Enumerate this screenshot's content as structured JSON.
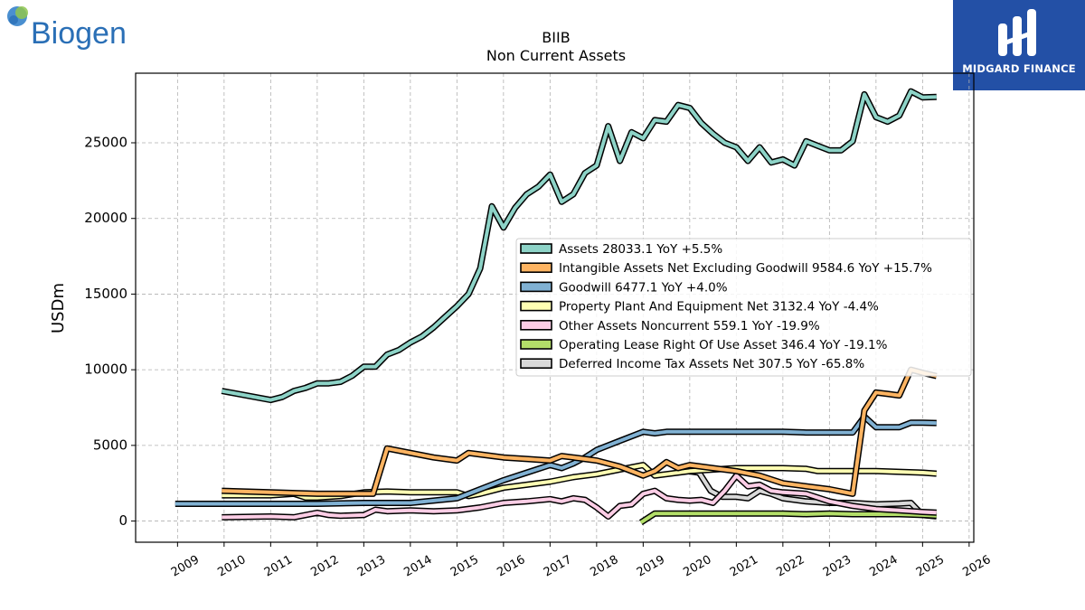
{
  "brand_left": {
    "name": "Biogen",
    "color": "#2a6fb6"
  },
  "brand_right": {
    "name": "MIDGARD FINANCE",
    "background": "#2350a6"
  },
  "chart_data": {
    "type": "line",
    "title": "BIIB",
    "subtitle": "Non Current  Assets",
    "ylabel": "USDm",
    "xlim": [
      2008.1,
      2026.1
    ],
    "ylim": [
      -1400,
      29600
    ],
    "x_ticks": [
      2009,
      2010,
      2011,
      2012,
      2013,
      2014,
      2015,
      2016,
      2017,
      2018,
      2019,
      2020,
      2021,
      2022,
      2023,
      2024,
      2025,
      2026
    ],
    "x_tick_labels": [
      "2009",
      "2010",
      "2011",
      "2012",
      "2013",
      "2014",
      "2015",
      "2016",
      "2017",
      "2018",
      "2019",
      "2020",
      "2021",
      "2022",
      "2023",
      "2024",
      "2025",
      "2026"
    ],
    "y_ticks": [
      0,
      5000,
      10000,
      15000,
      20000,
      25000
    ],
    "y_tick_labels": [
      "0",
      "5000",
      "10000",
      "15000",
      "20000",
      "25000"
    ],
    "grid": true,
    "legend_position": "center-right",
    "series": [
      {
        "name": "Assets",
        "legend": "Assets  28033.1 YoY +5.5%",
        "color": "#8dd3c7",
        "x": [
          2009.95,
          2011.0,
          2011.25,
          2011.5,
          2011.75,
          2012.0,
          2012.25,
          2012.5,
          2012.75,
          2013.0,
          2013.25,
          2013.5,
          2013.75,
          2014.0,
          2014.25,
          2014.5,
          2014.75,
          2015.0,
          2015.25,
          2015.5,
          2015.75,
          2016.0,
          2016.25,
          2016.5,
          2016.75,
          2017.0,
          2017.25,
          2017.5,
          2017.75,
          2018.0,
          2018.25,
          2018.5,
          2018.75,
          2019.0,
          2019.25,
          2019.5,
          2019.75,
          2020.0,
          2020.25,
          2020.5,
          2020.75,
          2021.0,
          2021.25,
          2021.5,
          2021.75,
          2022.0,
          2022.25,
          2022.5,
          2022.75,
          2023.0,
          2023.25,
          2023.5,
          2023.75,
          2024.0,
          2024.25,
          2024.5,
          2024.75,
          2025.0,
          2025.3
        ],
        "y": [
          8600,
          8000,
          8200,
          8600,
          8800,
          9100,
          9100,
          9200,
          9600,
          10200,
          10200,
          11000,
          11300,
          11800,
          12200,
          12800,
          13500,
          14200,
          15000,
          16700,
          20800,
          19400,
          20700,
          21600,
          22100,
          22900,
          21100,
          21600,
          23000,
          23500,
          26100,
          23800,
          25700,
          25300,
          26500,
          26400,
          27500,
          27300,
          26300,
          25600,
          25000,
          24700,
          23800,
          24700,
          23700,
          23900,
          23500,
          25100,
          24800,
          24500,
          24500,
          25100,
          28200,
          26700,
          26400,
          26800,
          28400,
          28000,
          28033.1
        ]
      },
      {
        "name": "Intangible Assets Net Excluding Goodwill",
        "legend": "Intangible Assets Net Excluding Goodwill  9584.6 YoY +15.7%",
        "color": "#fdb462",
        "x": [
          2009.95,
          2011.0,
          2012.0,
          2012.75,
          2013.2,
          2013.5,
          2014.0,
          2014.5,
          2015.0,
          2015.25,
          2015.5,
          2016.0,
          2016.5,
          2017.0,
          2017.25,
          2017.5,
          2018.0,
          2018.5,
          2019.0,
          2019.25,
          2019.5,
          2019.75,
          2020.0,
          2020.5,
          2021.0,
          2021.5,
          2022.0,
          2022.5,
          2023.0,
          2023.5,
          2023.75,
          2024.0,
          2024.25,
          2024.5,
          2024.75,
          2025.0,
          2025.3
        ],
        "y": [
          2000,
          1900,
          1800,
          1800,
          1800,
          4800,
          4500,
          4200,
          4000,
          4500,
          4400,
          4200,
          4100,
          4000,
          4300,
          4200,
          4000,
          3600,
          3000,
          3300,
          3900,
          3500,
          3700,
          3500,
          3300,
          3000,
          2500,
          2300,
          2100,
          1800,
          7300,
          8500,
          8400,
          8300,
          10000,
          9800,
          9584.6
        ]
      },
      {
        "name": "Goodwill",
        "legend": "Goodwill  6477.1 YoY +4.0%",
        "color": "#80b1d3",
        "x": [
          2008.95,
          2009.95,
          2011.0,
          2012.0,
          2013.0,
          2014.0,
          2015.0,
          2015.5,
          2016.0,
          2016.5,
          2017.0,
          2017.25,
          2017.5,
          2017.75,
          2018.0,
          2018.5,
          2019.0,
          2019.25,
          2019.5,
          2020.0,
          2020.5,
          2021.0,
          2021.5,
          2022.0,
          2022.5,
          2023.0,
          2023.5,
          2023.75,
          2024.0,
          2024.25,
          2024.5,
          2024.75,
          2025.0,
          2025.3
        ],
        "y": [
          1140,
          1140,
          1140,
          1140,
          1200,
          1200,
          1500,
          2100,
          2700,
          3200,
          3700,
          3500,
          3800,
          4200,
          4700,
          5300,
          5900,
          5800,
          5900,
          5900,
          5900,
          5900,
          5900,
          5900,
          5850,
          5850,
          5850,
          6900,
          6200,
          6200,
          6200,
          6500,
          6500,
          6477.1
        ]
      },
      {
        "name": "Property Plant And Equipment Net",
        "legend": "Property Plant And Equipment Net  3132.4 YoY -4.4%",
        "color": "#ffffb3",
        "x": [
          2009.95,
          2011.0,
          2011.5,
          2011.75,
          2012.0,
          2012.5,
          2013.0,
          2013.5,
          2014.0,
          2014.5,
          2015.0,
          2015.25,
          2015.5,
          2016.0,
          2016.5,
          2017.0,
          2017.5,
          2018.0,
          2018.5,
          2019.0,
          2019.25,
          2019.5,
          2020.0,
          2020.5,
          2021.0,
          2021.5,
          2022.0,
          2022.5,
          2022.75,
          2023.0,
          2023.5,
          2024.0,
          2024.5,
          2025.0,
          2025.3
        ],
        "y": [
          1700,
          1700,
          1800,
          1550,
          1550,
          1650,
          1900,
          1950,
          1900,
          1900,
          1900,
          1650,
          1800,
          2200,
          2400,
          2600,
          2900,
          3100,
          3400,
          3700,
          3000,
          3100,
          3300,
          3400,
          3500,
          3500,
          3500,
          3450,
          3300,
          3300,
          3300,
          3300,
          3250,
          3200,
          3132.4
        ]
      },
      {
        "name": "Other Assets Noncurrent",
        "legend": "Other Assets Noncurrent  559.1 YoY -19.9%",
        "color": "#fccde5",
        "x": [
          2009.95,
          2011.0,
          2011.5,
          2012.0,
          2012.25,
          2012.5,
          2013.0,
          2013.25,
          2013.5,
          2014.0,
          2014.5,
          2015.0,
          2015.5,
          2016.0,
          2016.5,
          2017.0,
          2017.25,
          2017.5,
          2017.75,
          2018.0,
          2018.25,
          2018.5,
          2018.75,
          2019.0,
          2019.25,
          2019.5,
          2019.75,
          2020.0,
          2020.25,
          2020.5,
          2020.75,
          2021.0,
          2021.25,
          2021.5,
          2021.75,
          2022.0,
          2022.5,
          2023.0,
          2023.5,
          2024.0,
          2024.5,
          2025.0,
          2025.3
        ],
        "y": [
          250,
          300,
          250,
          550,
          400,
          350,
          400,
          750,
          650,
          700,
          650,
          700,
          900,
          1200,
          1300,
          1450,
          1300,
          1500,
          1400,
          900,
          300,
          1000,
          1100,
          1800,
          2000,
          1500,
          1400,
          1350,
          1400,
          1200,
          2000,
          3000,
          2300,
          2400,
          2000,
          1900,
          1800,
          1300,
          1000,
          800,
          700,
          600,
          559.1
        ]
      },
      {
        "name": "Operating Lease Right Of Use Asset",
        "legend": "Operating Lease Right Of Use Asset  346.4 YoY -19.1%",
        "color": "#b3de69",
        "x": [
          2018.95,
          2019.25,
          2020.0,
          2020.5,
          2021.0,
          2021.5,
          2022.0,
          2022.5,
          2023.0,
          2023.5,
          2024.0,
          2024.5,
          2025.0,
          2025.3
        ],
        "y": [
          -100,
          500,
          500,
          500,
          500,
          500,
          500,
          450,
          500,
          450,
          450,
          450,
          400,
          346.4
        ]
      },
      {
        "name": "Deferred Income Tax Assets Net",
        "legend": "Deferred Income Tax Assets Net  307.5 YoY -65.8%",
        "color": "#d9d9d9",
        "x": [
          2019.95,
          2020.2,
          2020.45,
          2020.7,
          2021.0,
          2021.25,
          2021.5,
          2021.75,
          2022.0,
          2022.5,
          2023.0,
          2023.5,
          2024.0,
          2024.5,
          2024.75,
          2025.0,
          2025.3
        ],
        "y": [
          3300,
          3200,
          2000,
          1600,
          1600,
          1500,
          2000,
          1800,
          1500,
          1300,
          1200,
          1200,
          1100,
          1150,
          1200,
          400,
          307.5
        ]
      }
    ]
  }
}
